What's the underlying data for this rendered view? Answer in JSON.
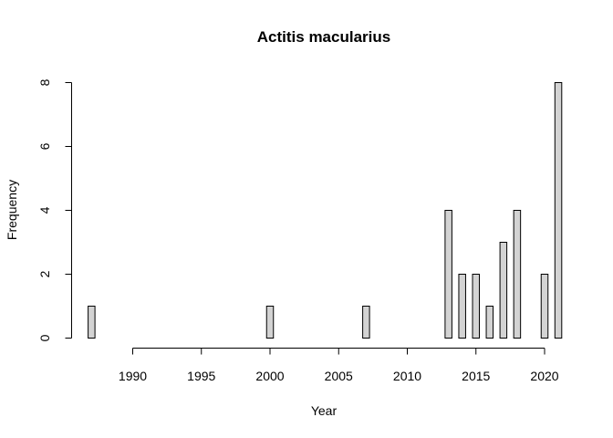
{
  "chart_data": {
    "type": "bar",
    "title": "Actitis macularius",
    "xlabel": "Year",
    "ylabel": "Frequency",
    "x": [
      1987,
      1988,
      1989,
      1990,
      1991,
      1992,
      1993,
      1994,
      1995,
      1996,
      1997,
      1998,
      1999,
      2000,
      2001,
      2002,
      2003,
      2004,
      2005,
      2006,
      2007,
      2008,
      2009,
      2010,
      2011,
      2012,
      2013,
      2014,
      2015,
      2016,
      2017,
      2018,
      2019,
      2020,
      2021
    ],
    "values": [
      1,
      0,
      0,
      0,
      0,
      0,
      0,
      0,
      0,
      0,
      0,
      0,
      0,
      1,
      0,
      0,
      0,
      0,
      0,
      0,
      1,
      0,
      0,
      0,
      0,
      0,
      4,
      2,
      2,
      1,
      3,
      4,
      0,
      2,
      8
    ],
    "xticks": [
      "1990",
      "1995",
      "2000",
      "2005",
      "2010",
      "2015",
      "2020"
    ],
    "yticks": [
      "0",
      "2",
      "4",
      "6",
      "8"
    ],
    "ylim": [
      0,
      8
    ],
    "grid": false,
    "colors": {
      "bar_fill": "#d3d3d3",
      "bar_stroke": "#000000"
    }
  }
}
